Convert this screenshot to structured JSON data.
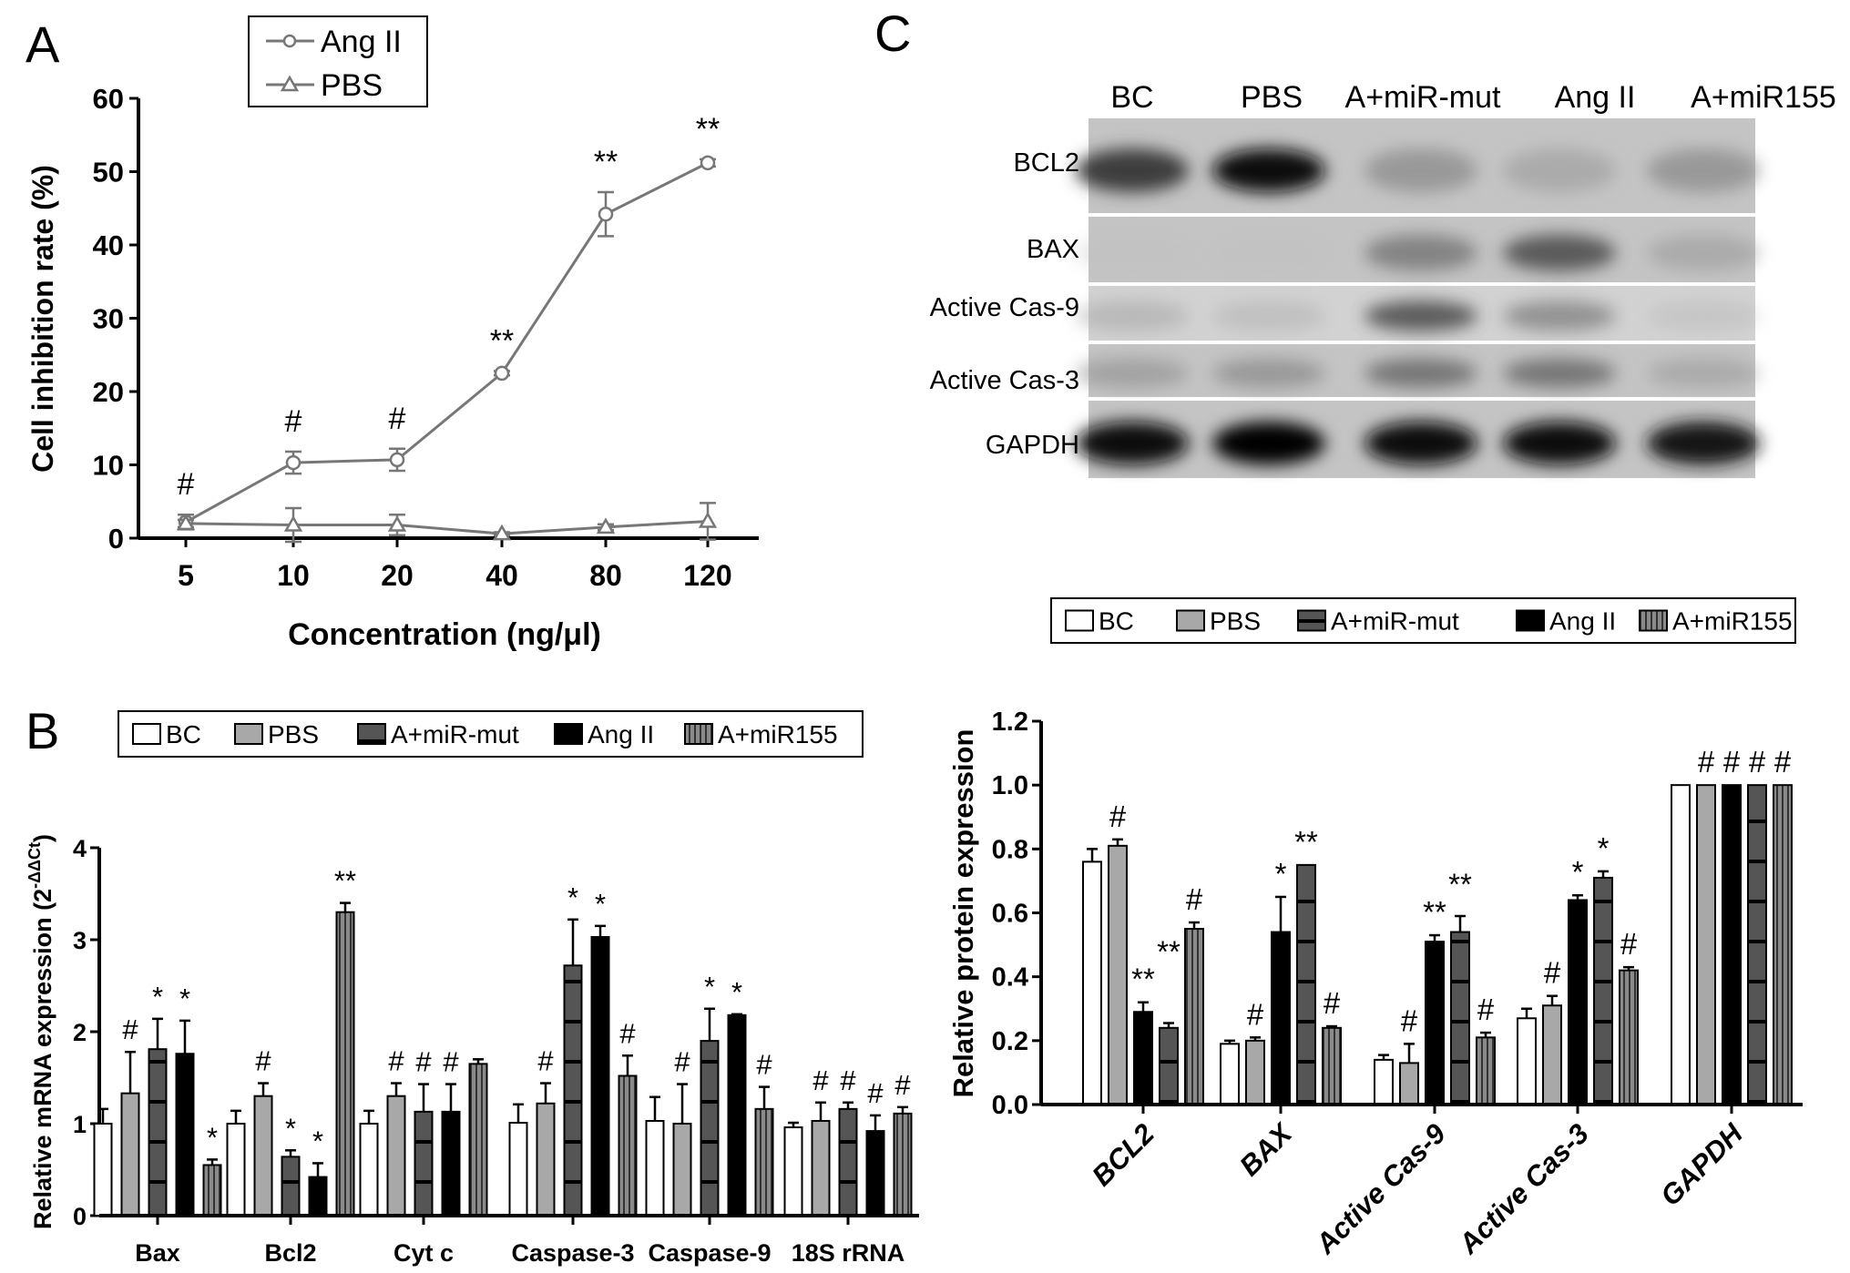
{
  "panels": {
    "a": "A",
    "b": "B",
    "c": "C"
  },
  "colors": {
    "bc": "#ffffff",
    "pbs": "#a8a8a8",
    "mut": "#555555",
    "ang": "#000000",
    "mir155": "#8a8a8a",
    "line": "#777777"
  },
  "chart_data": [
    {
      "type": "line",
      "panel": "A",
      "xlabel": "Concentration (ng/μl)",
      "ylabel": "Cell inhibition rate (%)",
      "x": [
        "5",
        "10",
        "20",
        "40",
        "80",
        "120"
      ],
      "ylim": [
        0,
        60
      ],
      "yticks": [
        "0",
        "10",
        "20",
        "30",
        "40",
        "50",
        "60"
      ],
      "legend_placement": "top",
      "series": [
        {
          "name": "Ang II",
          "marker": "circle",
          "values": [
            2.2,
            10.3,
            10.7,
            22.5,
            44.2,
            51.2
          ],
          "errors": [
            1.0,
            1.5,
            1.5,
            0.3,
            3.0,
            0.5
          ]
        },
        {
          "name": "PBS",
          "marker": "triangle",
          "values": [
            2.0,
            1.8,
            1.8,
            0.6,
            1.5,
            2.3
          ],
          "errors": [
            0.5,
            2.3,
            1.4,
            0.2,
            0.4,
            2.5
          ]
        }
      ],
      "annotations": [
        "#",
        "#",
        "#",
        "**",
        "**",
        "**"
      ]
    },
    {
      "type": "bar",
      "panel": "B",
      "ylabel_main": "Relative mRNA expression (2",
      "ylabel_sup": "-ΔΔCt",
      "ylabel_end": ")",
      "categories": [
        "Bax",
        "Bcl2",
        "Cyt c",
        "Caspase-3",
        "Caspase-9",
        "18S rRNA"
      ],
      "ylim": [
        0,
        4
      ],
      "yticks": [
        "0",
        "1",
        "2",
        "3",
        "4"
      ],
      "legend_placement": "top",
      "series": [
        {
          "name": "BC",
          "fill": "bc",
          "values": [
            1.0,
            1.0,
            1.0,
            1.01,
            1.03,
            0.96
          ],
          "errors": [
            0.16,
            0.14,
            0.14,
            0.2,
            0.26,
            0.05
          ],
          "annotations": [
            "",
            "",
            "",
            "",
            "",
            ""
          ]
        },
        {
          "name": "PBS",
          "fill": "pbs",
          "values": [
            1.33,
            1.3,
            1.3,
            1.22,
            1.0,
            1.03
          ],
          "errors": [
            0.45,
            0.14,
            0.14,
            0.22,
            0.43,
            0.2
          ],
          "annotations": [
            "#",
            "#",
            "#",
            "#",
            "#",
            "#"
          ]
        },
        {
          "name": "A+miR-mut",
          "fill": "mut",
          "values": [
            1.81,
            0.64,
            1.13,
            2.72,
            1.9,
            1.16
          ],
          "errors": [
            0.33,
            0.07,
            0.3,
            0.5,
            0.35,
            0.07
          ],
          "annotations": [
            "*",
            "*",
            "#",
            "*",
            "*",
            "#"
          ]
        },
        {
          "name": "Ang II",
          "fill": "ang",
          "values": [
            1.76,
            0.42,
            1.13,
            3.03,
            2.18,
            0.92
          ],
          "errors": [
            0.36,
            0.15,
            0.3,
            0.12,
            0.01,
            0.17
          ],
          "annotations": [
            "*",
            "*",
            "#",
            "*",
            "*",
            "#"
          ]
        },
        {
          "name": "A+miR155",
          "fill": "mir155",
          "values": [
            0.55,
            3.3,
            1.65,
            1.52,
            1.16,
            1.11
          ],
          "errors": [
            0.06,
            0.1,
            0.05,
            0.22,
            0.24,
            0.07
          ],
          "annotations": [
            "*",
            "**",
            "",
            "#",
            "#",
            "#"
          ]
        }
      ]
    },
    {
      "type": "bar",
      "panel": "C",
      "ylabel": "Relative protein expression",
      "categories": [
        "BCL2",
        "BAX",
        "Active Cas-9",
        "Active Cas-3",
        "GAPDH"
      ],
      "ylim": [
        0,
        1.2
      ],
      "yticks": [
        "0.0",
        "0.2",
        "0.4",
        "0.6",
        "0.8",
        "1.0",
        "1.2"
      ],
      "legend_placement": "top",
      "legend": [
        "BC",
        "PBS",
        "A+miR-mut",
        "Ang II",
        "A+miR155"
      ],
      "series": [
        {
          "name": "BC",
          "fill": "bc",
          "values": [
            0.76,
            0.19,
            0.14,
            0.27,
            1.0
          ],
          "errors": [
            0.04,
            0.01,
            0.015,
            0.03,
            0
          ],
          "annotations": [
            "",
            "",
            "",
            "",
            ""
          ]
        },
        {
          "name": "PBS",
          "fill": "pbs",
          "values": [
            0.81,
            0.2,
            0.13,
            0.31,
            1.0
          ],
          "errors": [
            0.02,
            0.01,
            0.06,
            0.03,
            0
          ],
          "annotations": [
            "#",
            "#",
            "#",
            "#",
            "#"
          ]
        },
        {
          "name": "Ang II",
          "fill": "ang",
          "values": [
            0.29,
            0.54,
            0.51,
            0.64,
            1.0
          ],
          "errors": [
            0.03,
            0.11,
            0.02,
            0.015,
            0
          ],
          "annotations": [
            "**",
            "*",
            "**",
            "*",
            "#"
          ]
        },
        {
          "name": "A+miR-mut",
          "fill": "mut",
          "values": [
            0.24,
            0.75,
            0.54,
            0.71,
            1.0
          ],
          "errors": [
            0.015,
            0,
            0.05,
            0.02,
            0
          ],
          "annotations": [
            "**",
            "**",
            "**",
            "*",
            "#"
          ]
        },
        {
          "name": "A+miR155",
          "fill": "mir155",
          "values": [
            0.55,
            0.24,
            0.21,
            0.42,
            1.0
          ],
          "errors": [
            0.02,
            0.005,
            0.015,
            0.01,
            0
          ],
          "annotations": [
            "#",
            "#",
            "#",
            "#",
            "#"
          ]
        }
      ]
    }
  ],
  "blot": {
    "lanes": [
      "BC",
      "PBS",
      "A+miR-mut",
      "Ang II",
      "A+miR155"
    ],
    "rows": [
      "BCL2",
      "BAX",
      "Active Cas-9",
      "Active Cas-3",
      "GAPDH"
    ]
  }
}
